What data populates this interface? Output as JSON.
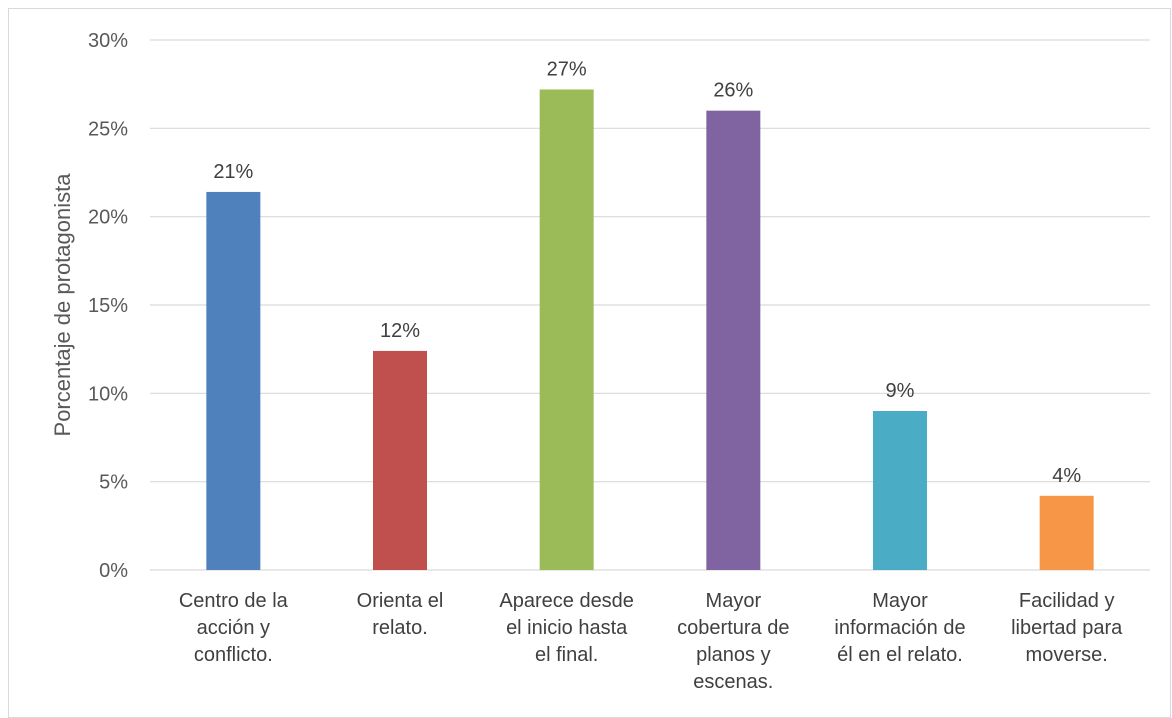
{
  "chart_data": {
    "type": "bar",
    "ylabel": "Porcentaje de protagonista",
    "xlabel": "",
    "ylim": [
      0,
      30
    ],
    "yticks": [
      0,
      5,
      10,
      15,
      20,
      25,
      30
    ],
    "ytick_labels": [
      "0%",
      "5%",
      "10%",
      "15%",
      "20%",
      "25%",
      "30%"
    ],
    "grid": true,
    "categories": [
      "Centro de la acción y conflicto.",
      "Orienta el relato.",
      "Aparece desde el inicio hasta el final.",
      "Mayor cobertura de planos y escenas.",
      "Mayor información de él en el relato.",
      "Facilidad y libertad para moverse."
    ],
    "category_lines": [
      [
        "Centro de la",
        "acción y",
        "conflicto."
      ],
      [
        "Orienta el",
        "relato."
      ],
      [
        "Aparece desde",
        "el inicio hasta",
        "el final."
      ],
      [
        "Mayor",
        "cobertura de",
        "planos y",
        "escenas."
      ],
      [
        "Mayor",
        "información de",
        "él en el relato."
      ],
      [
        "Facilidad y",
        "libertad para",
        "moverse."
      ]
    ],
    "values": [
      21.4,
      12.4,
      27.2,
      26.0,
      9.0,
      4.2
    ],
    "data_labels": [
      "21%",
      "12%",
      "27%",
      "26%",
      "9%",
      "4%"
    ],
    "colors": [
      "#4f81bd",
      "#c0504d",
      "#9bbb59",
      "#8064a2",
      "#4bacc6",
      "#f79646"
    ]
  }
}
